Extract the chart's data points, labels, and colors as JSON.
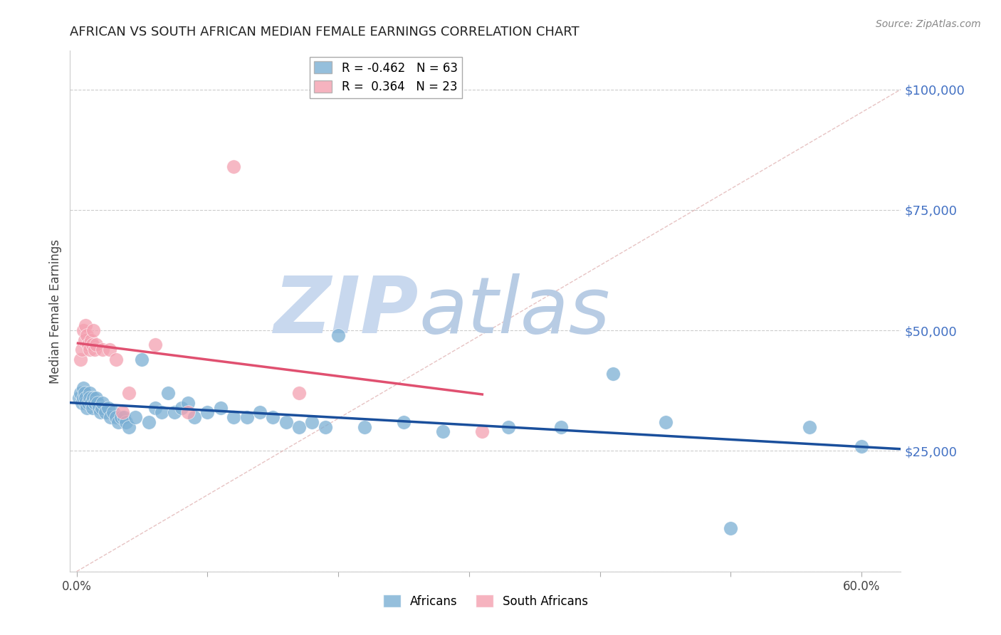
{
  "title": "AFRICAN VS SOUTH AFRICAN MEDIAN FEMALE EARNINGS CORRELATION CHART",
  "source": "Source: ZipAtlas.com",
  "ylabel": "Median Female Earnings",
  "xlim": [
    -0.005,
    0.63
  ],
  "ylim": [
    0,
    108000
  ],
  "background_color": "#ffffff",
  "grid_color": "#cccccc",
  "title_color": "#222222",
  "axis_label_color": "#444444",
  "right_tick_color": "#4472c4",
  "africans_color": "#7bafd4",
  "south_africans_color": "#f4a0b0",
  "africans_line_color": "#1a4f9c",
  "south_africans_line_color": "#e05070",
  "diagonal_color": "#c8c8c8",
  "legend_africans_label": "Africans",
  "legend_south_africans_label": "South Africans",
  "R_africans": -0.462,
  "N_africans": 63,
  "R_south_africans": 0.364,
  "N_south_africans": 23,
  "africans_x": [
    0.002,
    0.003,
    0.004,
    0.005,
    0.005,
    0.006,
    0.007,
    0.007,
    0.008,
    0.009,
    0.01,
    0.01,
    0.011,
    0.012,
    0.013,
    0.014,
    0.015,
    0.016,
    0.017,
    0.018,
    0.019,
    0.02,
    0.022,
    0.024,
    0.026,
    0.028,
    0.03,
    0.032,
    0.034,
    0.036,
    0.038,
    0.04,
    0.045,
    0.05,
    0.055,
    0.06,
    0.065,
    0.07,
    0.075,
    0.08,
    0.085,
    0.09,
    0.1,
    0.11,
    0.12,
    0.13,
    0.14,
    0.15,
    0.16,
    0.17,
    0.18,
    0.19,
    0.2,
    0.22,
    0.25,
    0.28,
    0.33,
    0.37,
    0.41,
    0.45,
    0.5,
    0.56,
    0.6
  ],
  "africans_y": [
    36000,
    37000,
    35000,
    36000,
    38000,
    37000,
    35000,
    36000,
    34000,
    35000,
    37000,
    36000,
    35000,
    34000,
    36000,
    35000,
    36000,
    35000,
    34000,
    33000,
    34000,
    35000,
    33000,
    34000,
    32000,
    33000,
    32000,
    31000,
    32000,
    32000,
    31000,
    30000,
    32000,
    44000,
    31000,
    34000,
    33000,
    37000,
    33000,
    34000,
    35000,
    32000,
    33000,
    34000,
    32000,
    32000,
    33000,
    32000,
    31000,
    30000,
    31000,
    30000,
    49000,
    30000,
    31000,
    29000,
    30000,
    30000,
    41000,
    31000,
    9000,
    30000,
    26000
  ],
  "south_africans_x": [
    0.003,
    0.004,
    0.005,
    0.006,
    0.007,
    0.008,
    0.009,
    0.01,
    0.011,
    0.012,
    0.013,
    0.014,
    0.015,
    0.02,
    0.025,
    0.03,
    0.035,
    0.04,
    0.06,
    0.085,
    0.12,
    0.17,
    0.31
  ],
  "south_africans_y": [
    44000,
    46000,
    50000,
    48000,
    51000,
    49000,
    47000,
    46000,
    48000,
    47000,
    50000,
    46000,
    47000,
    46000,
    46000,
    44000,
    33000,
    37000,
    47000,
    33000,
    84000,
    37000,
    29000
  ],
  "watermark_zip": "ZIP",
  "watermark_atlas": "atlas",
  "watermark_zip_color": "#c8d8ee",
  "watermark_atlas_color": "#b8cce4",
  "ylabel_ticks": [
    0,
    25000,
    50000,
    75000,
    100000
  ],
  "ylabel_labels": [
    "",
    "$25,000",
    "$50,000",
    "$75,000",
    "$100,000"
  ],
  "xlabel_vals": [
    0.0,
    0.1,
    0.2,
    0.3,
    0.4,
    0.5,
    0.6
  ],
  "xlabel_ticks": [
    "0.0%",
    "",
    "",
    "",
    "",
    "",
    "60.0%"
  ]
}
